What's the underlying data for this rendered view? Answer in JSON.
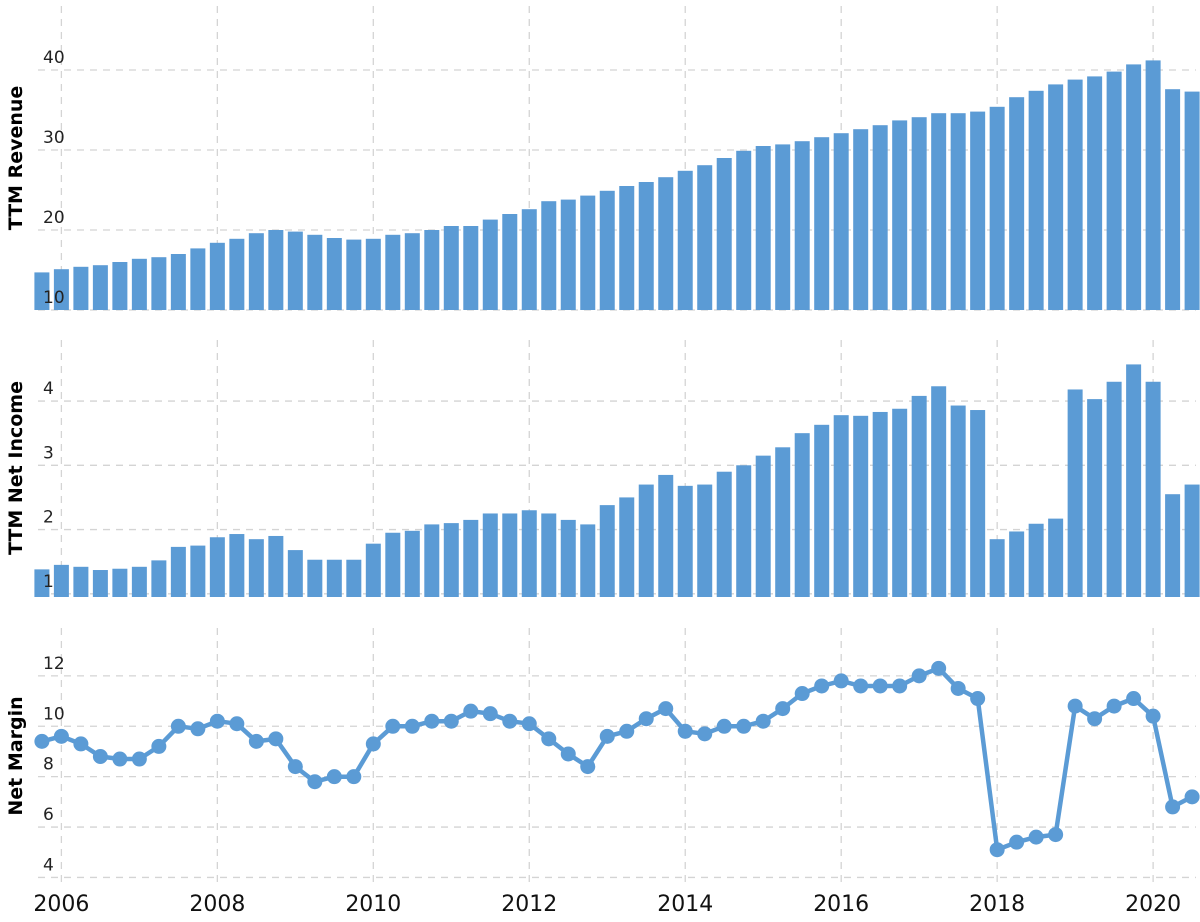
{
  "chart_data": [
    {
      "type": "bar",
      "ylabel": "TTM Revenue",
      "ylim": [
        10,
        48
      ],
      "yticks": [
        10,
        20,
        30,
        40
      ],
      "xlim": [
        2005.7,
        2020.55
      ],
      "xticks": [
        "2006",
        "2008",
        "2010",
        "2012",
        "2014",
        "2016",
        "2018",
        "2020"
      ],
      "grid": true,
      "x": [
        2005.75,
        2006.0,
        2006.25,
        2006.5,
        2006.75,
        2007.0,
        2007.25,
        2007.5,
        2007.75,
        2008.0,
        2008.25,
        2008.5,
        2008.75,
        2009.0,
        2009.25,
        2009.5,
        2009.75,
        2010.0,
        2010.25,
        2010.5,
        2010.75,
        2011.0,
        2011.25,
        2011.5,
        2011.75,
        2012.0,
        2012.25,
        2012.5,
        2012.75,
        2013.0,
        2013.25,
        2013.5,
        2013.75,
        2014.0,
        2014.25,
        2014.5,
        2014.75,
        2015.0,
        2015.25,
        2015.5,
        2015.75,
        2016.0,
        2016.25,
        2016.5,
        2016.75,
        2017.0,
        2017.25,
        2017.5,
        2017.75,
        2018.0,
        2018.25,
        2018.5,
        2018.75,
        2019.0,
        2019.25,
        2019.5,
        2019.75,
        2020.0,
        2020.25,
        2020.5
      ],
      "values": [
        14.7,
        15.1,
        15.4,
        15.6,
        16.0,
        16.4,
        16.6,
        17.0,
        17.7,
        18.4,
        18.9,
        19.6,
        20.0,
        19.8,
        19.4,
        19.0,
        18.8,
        18.9,
        19.4,
        19.6,
        20.0,
        20.5,
        20.5,
        21.3,
        22.0,
        22.6,
        23.6,
        23.8,
        24.3,
        24.9,
        25.5,
        26.0,
        26.6,
        27.4,
        28.1,
        29.0,
        29.9,
        30.5,
        30.7,
        31.1,
        31.6,
        32.1,
        32.6,
        33.1,
        33.7,
        34.1,
        34.6,
        34.6,
        34.8,
        35.4,
        36.6,
        37.4,
        38.2,
        38.8,
        39.2,
        39.8,
        40.7,
        41.2,
        37.6,
        37.3
      ]
    },
    {
      "type": "bar",
      "ylabel": "TTM Net Income",
      "ylim": [
        0.95,
        4.95
      ],
      "yticks": [
        1,
        2,
        3,
        4
      ],
      "xlim": [
        2005.7,
        2020.55
      ],
      "xticks": [
        "2006",
        "2008",
        "2010",
        "2012",
        "2014",
        "2016",
        "2018",
        "2020"
      ],
      "grid": true,
      "x": [
        2005.75,
        2006.0,
        2006.25,
        2006.5,
        2006.75,
        2007.0,
        2007.25,
        2007.5,
        2007.75,
        2008.0,
        2008.25,
        2008.5,
        2008.75,
        2009.0,
        2009.25,
        2009.5,
        2009.75,
        2010.0,
        2010.25,
        2010.5,
        2010.75,
        2011.0,
        2011.25,
        2011.5,
        2011.75,
        2012.0,
        2012.25,
        2012.5,
        2012.75,
        2013.0,
        2013.25,
        2013.5,
        2013.75,
        2014.0,
        2014.25,
        2014.5,
        2014.75,
        2015.0,
        2015.25,
        2015.5,
        2015.75,
        2016.0,
        2016.25,
        2016.5,
        2016.75,
        2017.0,
        2017.25,
        2017.5,
        2017.75,
        2018.0,
        2018.25,
        2018.5,
        2018.75,
        2019.0,
        2019.25,
        2019.5,
        2019.75,
        2020.0,
        2020.25,
        2020.5
      ],
      "values": [
        1.38,
        1.45,
        1.42,
        1.37,
        1.39,
        1.42,
        1.52,
        1.73,
        1.75,
        1.88,
        1.93,
        1.85,
        1.9,
        1.68,
        1.53,
        1.53,
        1.53,
        1.78,
        1.95,
        1.98,
        2.08,
        2.1,
        2.15,
        2.25,
        2.25,
        2.3,
        2.25,
        2.15,
        2.08,
        2.38,
        2.5,
        2.7,
        2.85,
        2.68,
        2.7,
        2.9,
        3.0,
        3.15,
        3.28,
        3.5,
        3.63,
        3.78,
        3.77,
        3.83,
        3.88,
        4.08,
        4.23,
        3.93,
        3.86,
        1.85,
        1.97,
        2.09,
        2.17,
        4.18,
        4.03,
        4.3,
        4.57,
        4.3,
        2.55,
        2.7
      ]
    },
    {
      "type": "line",
      "ylabel": "Net Margin",
      "ylim": [
        3.7,
        13.9
      ],
      "yticks": [
        4,
        6,
        8,
        10,
        12
      ],
      "xlim": [
        2005.7,
        2020.55
      ],
      "xticks": [
        "2006",
        "2008",
        "2010",
        "2012",
        "2014",
        "2016",
        "2018",
        "2020"
      ],
      "grid": true,
      "x": [
        2005.75,
        2006.0,
        2006.25,
        2006.5,
        2006.75,
        2007.0,
        2007.25,
        2007.5,
        2007.75,
        2008.0,
        2008.25,
        2008.5,
        2008.75,
        2009.0,
        2009.25,
        2009.5,
        2009.75,
        2010.0,
        2010.25,
        2010.5,
        2010.75,
        2011.0,
        2011.25,
        2011.5,
        2011.75,
        2012.0,
        2012.25,
        2012.5,
        2012.75,
        2013.0,
        2013.25,
        2013.5,
        2013.75,
        2014.0,
        2014.25,
        2014.5,
        2014.75,
        2015.0,
        2015.25,
        2015.5,
        2015.75,
        2016.0,
        2016.25,
        2016.5,
        2016.75,
        2017.0,
        2017.25,
        2017.5,
        2017.75,
        2018.0,
        2018.25,
        2018.5,
        2018.75,
        2019.0,
        2019.25,
        2019.5,
        2019.75,
        2020.0,
        2020.25,
        2020.5
      ],
      "values": [
        9.4,
        9.6,
        9.3,
        8.8,
        8.7,
        8.7,
        9.2,
        10.0,
        9.9,
        10.2,
        10.1,
        9.4,
        9.5,
        8.4,
        7.8,
        8.0,
        8.0,
        9.3,
        10.0,
        10.0,
        10.2,
        10.2,
        10.6,
        10.5,
        10.2,
        10.1,
        9.5,
        8.9,
        8.4,
        9.6,
        9.8,
        10.3,
        10.7,
        9.8,
        9.7,
        10.0,
        10.0,
        10.2,
        10.7,
        11.3,
        11.6,
        11.8,
        11.6,
        11.6,
        11.6,
        12.0,
        12.3,
        11.5,
        11.1,
        5.1,
        5.4,
        5.6,
        5.7,
        10.8,
        10.3,
        10.8,
        11.1,
        10.4,
        6.8,
        7.2
      ]
    }
  ]
}
